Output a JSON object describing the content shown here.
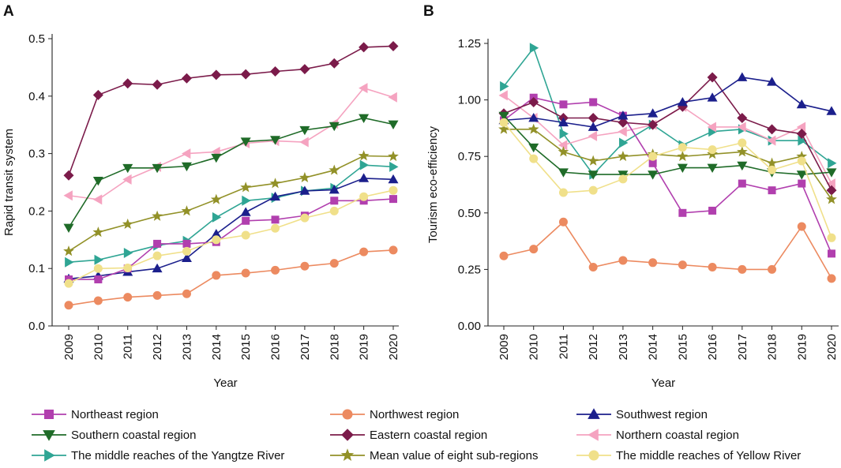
{
  "figure": {
    "legend": [
      {
        "key": "NE",
        "name": "Northeast region"
      },
      {
        "key": "NW",
        "name": "Northwest region"
      },
      {
        "key": "SW",
        "name": "Southwest region"
      },
      {
        "key": "SC",
        "name": "Southern coastal region"
      },
      {
        "key": "EC",
        "name": "Eastern coastal region"
      },
      {
        "key": "NC",
        "name": "Northern coastal region"
      },
      {
        "key": "YZ",
        "name": "The middle reaches of the Yangtze River"
      },
      {
        "key": "MV",
        "name": "Mean value of eight sub-regions"
      },
      {
        "key": "YR",
        "name": "The middle reaches of Yellow River"
      }
    ],
    "styles": {
      "NE": {
        "color": "#b13fae",
        "marker": "square"
      },
      "NW": {
        "color": "#ec8a60",
        "marker": "circle"
      },
      "SW": {
        "color": "#1b1f8c",
        "marker": "triangle-up"
      },
      "SC": {
        "color": "#1f6b28",
        "marker": "triangle-down"
      },
      "EC": {
        "color": "#7b1b4a",
        "marker": "diamond"
      },
      "NC": {
        "color": "#f5a3c0",
        "marker": "triangle-left"
      },
      "YZ": {
        "color": "#2fa594",
        "marker": "triangle-right"
      },
      "MV": {
        "color": "#929128",
        "marker": "star"
      },
      "YR": {
        "color": "#f0e08a",
        "marker": "circle"
      }
    }
  },
  "chart_data": [
    {
      "panel": "A",
      "type": "line",
      "xlabel": "Year",
      "ylabel": "Rapid transit system",
      "categories": [
        "2009",
        "2010",
        "2011",
        "2012",
        "2013",
        "2014",
        "2015",
        "2016",
        "2017",
        "2018",
        "2019",
        "2020"
      ],
      "ylim": [
        0,
        0.5
      ],
      "yticks": [
        0.0,
        0.1,
        0.2,
        0.3,
        0.4,
        0.5
      ],
      "ytick_labels": [
        "0.0",
        "0.1",
        "0.2",
        "0.3",
        "0.4",
        "0.5"
      ],
      "series": [
        {
          "key": "EC",
          "name": "Eastern coastal region",
          "values": [
            0.262,
            0.402,
            0.422,
            0.42,
            0.431,
            0.437,
            0.438,
            0.443,
            0.447,
            0.457,
            0.485,
            0.487
          ]
        },
        {
          "key": "NC",
          "name": "Northern coastal region",
          "values": [
            0.227,
            0.22,
            0.255,
            0.277,
            0.3,
            0.303,
            0.318,
            0.322,
            0.32,
            0.352,
            0.414,
            0.398
          ]
        },
        {
          "key": "SC",
          "name": "Southern coastal region",
          "values": [
            0.171,
            0.253,
            0.275,
            0.275,
            0.278,
            0.293,
            0.321,
            0.324,
            0.341,
            0.348,
            0.362,
            0.351
          ]
        },
        {
          "key": "MV",
          "name": "Mean value of eight sub-regions",
          "values": [
            0.13,
            0.163,
            0.177,
            0.191,
            0.2,
            0.22,
            0.241,
            0.248,
            0.258,
            0.271,
            0.296,
            0.295
          ]
        },
        {
          "key": "YZ",
          "name": "The middle reaches of the Yangtze River",
          "values": [
            0.111,
            0.115,
            0.127,
            0.14,
            0.148,
            0.189,
            0.218,
            0.223,
            0.235,
            0.24,
            0.28,
            0.277
          ]
        },
        {
          "key": "SW",
          "name": "Southwest region",
          "values": [
            0.082,
            0.087,
            0.094,
            0.1,
            0.118,
            0.16,
            0.198,
            0.225,
            0.235,
            0.237,
            0.257,
            0.255
          ]
        },
        {
          "key": "NE",
          "name": "Northeast region",
          "values": [
            0.081,
            0.081,
            0.1,
            0.143,
            0.143,
            0.146,
            0.183,
            0.185,
            0.192,
            0.218,
            0.218,
            0.221
          ]
        },
        {
          "key": "YR",
          "name": "The middle reaches of Yellow River",
          "values": [
            0.074,
            0.1,
            0.101,
            0.122,
            0.13,
            0.15,
            0.158,
            0.17,
            0.188,
            0.2,
            0.225,
            0.236
          ]
        },
        {
          "key": "NW",
          "name": "Northwest region",
          "values": [
            0.036,
            0.044,
            0.05,
            0.053,
            0.056,
            0.088,
            0.092,
            0.097,
            0.104,
            0.109,
            0.129,
            0.132
          ]
        }
      ]
    },
    {
      "panel": "B",
      "type": "line",
      "xlabel": "Year",
      "ylabel": "Tourism eco-efficiency",
      "categories": [
        "2009",
        "2010",
        "2011",
        "2012",
        "2013",
        "2014",
        "2015",
        "2016",
        "2017",
        "2018",
        "2019",
        "2020"
      ],
      "ylim": [
        0,
        1.25
      ],
      "yticks": [
        0.0,
        0.25,
        0.5,
        0.75,
        1.0,
        1.25
      ],
      "ytick_labels": [
        "0.00",
        "0.25",
        "0.50",
        "0.75",
        "1.00",
        "1.25"
      ],
      "series": [
        {
          "key": "YZ",
          "name": "The middle reaches of the Yangtze River",
          "values": [
            1.06,
            1.23,
            0.85,
            0.67,
            0.81,
            0.89,
            0.8,
            0.86,
            0.87,
            0.82,
            0.82,
            0.72
          ]
        },
        {
          "key": "NC",
          "name": "Northern coastal region",
          "values": [
            1.02,
            0.92,
            0.8,
            0.84,
            0.86,
            0.89,
            0.97,
            0.88,
            0.88,
            0.82,
            0.88,
            0.63
          ]
        },
        {
          "key": "NE",
          "name": "Northeast region",
          "values": [
            0.91,
            1.01,
            0.98,
            0.99,
            0.93,
            0.72,
            0.5,
            0.51,
            0.63,
            0.6,
            0.63,
            0.32
          ]
        },
        {
          "key": "EC",
          "name": "Eastern coastal region",
          "values": [
            0.94,
            0.99,
            0.92,
            0.92,
            0.9,
            0.89,
            0.97,
            1.1,
            0.92,
            0.87,
            0.85,
            0.6
          ]
        },
        {
          "key": "SW",
          "name": "Southwest region",
          "values": [
            0.91,
            0.92,
            0.9,
            0.88,
            0.93,
            0.94,
            0.99,
            1.01,
            1.1,
            1.08,
            0.98,
            0.95
          ]
        },
        {
          "key": "SC",
          "name": "Southern coastal region",
          "values": [
            0.93,
            0.79,
            0.68,
            0.67,
            0.67,
            0.67,
            0.7,
            0.7,
            0.71,
            0.68,
            0.67,
            0.68
          ]
        },
        {
          "key": "MV",
          "name": "Mean value of eight sub-regions",
          "values": [
            0.87,
            0.87,
            0.77,
            0.73,
            0.75,
            0.76,
            0.75,
            0.76,
            0.77,
            0.72,
            0.75,
            0.56
          ]
        },
        {
          "key": "YR",
          "name": "The middle reaches of Yellow River",
          "values": [
            0.9,
            0.74,
            0.59,
            0.6,
            0.65,
            0.75,
            0.79,
            0.78,
            0.81,
            0.69,
            0.73,
            0.39
          ]
        },
        {
          "key": "NW",
          "name": "Northwest region",
          "values": [
            0.31,
            0.34,
            0.46,
            0.26,
            0.29,
            0.28,
            0.27,
            0.26,
            0.25,
            0.25,
            0.44,
            0.21
          ]
        }
      ]
    }
  ]
}
